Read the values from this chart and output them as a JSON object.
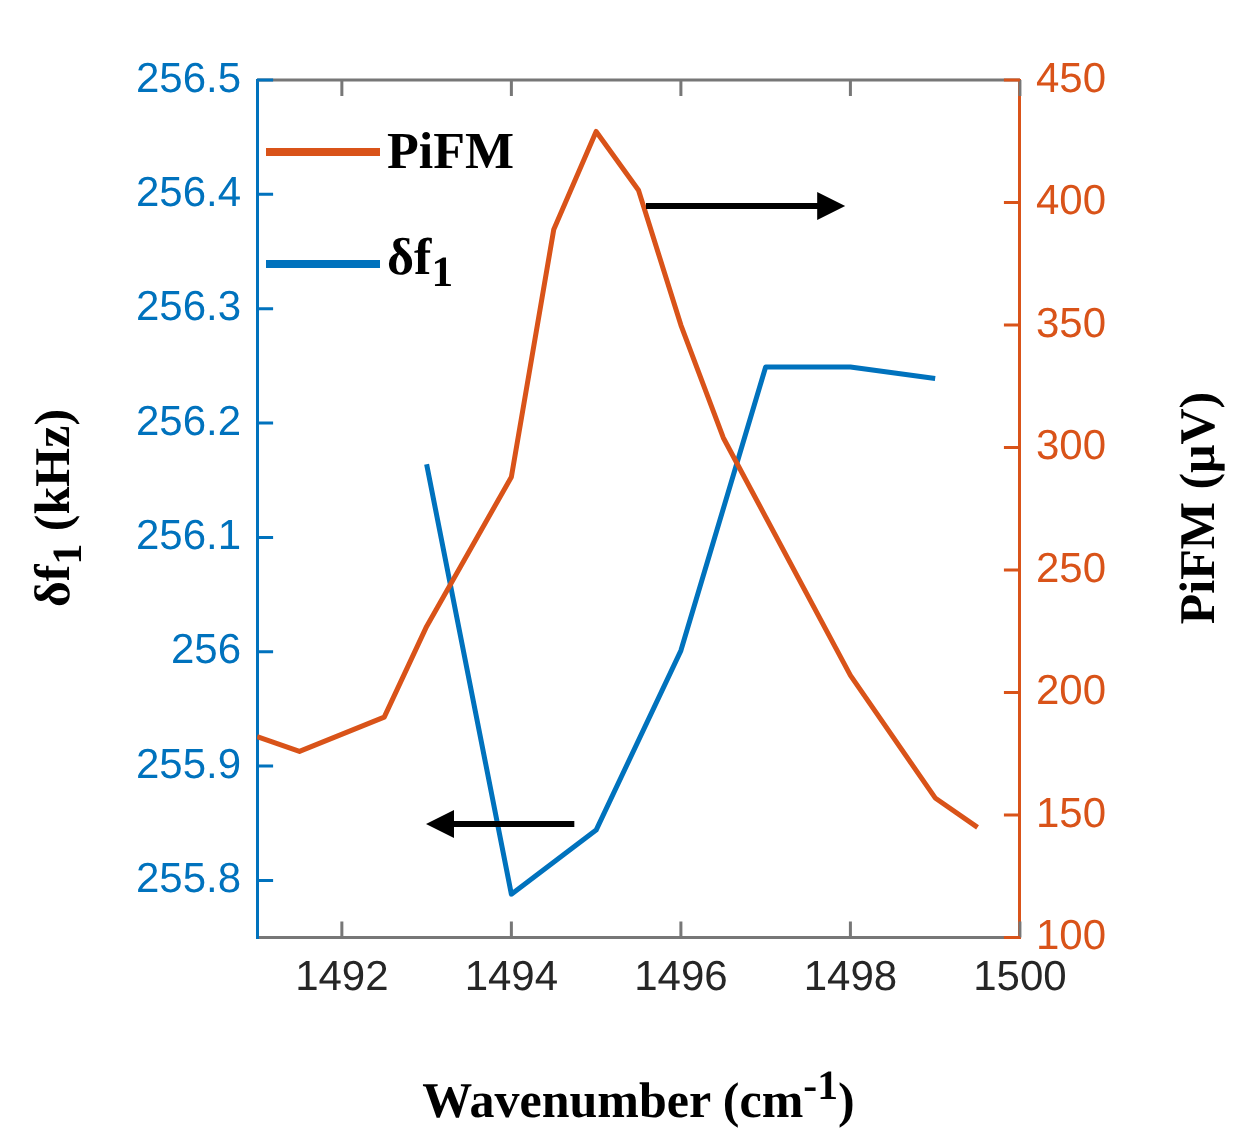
{
  "chart_data": {
    "type": "line",
    "xlabel": "Wavenumber (cm$^{-1}$)",
    "ylabel": "δf$_{1}$ (kHz)",
    "y2label": "PiFM (μV)",
    "xlim": [
      1491,
      1500
    ],
    "xticks": [
      1492,
      1494,
      1496,
      1498,
      1500
    ],
    "ylim": [
      255.75,
      256.5
    ],
    "yticks": [
      255.8,
      255.9,
      256,
      256.1,
      256.2,
      256.3,
      256.4,
      256.5
    ],
    "y2lim": [
      100,
      450
    ],
    "y2ticks": [
      100,
      150,
      200,
      250,
      300,
      350,
      400,
      450
    ],
    "grid": false,
    "legend": "top left",
    "marker": "none",
    "line_style": "solid",
    "series": [
      {
        "name": "PiFM",
        "color": "#d95319",
        "axis": "y2",
        "x": [
          1491,
          1491.5,
          1492.5,
          1493,
          1494,
          1494.5,
          1495,
          1495.5,
          1496,
          1496.5,
          1498,
          1499,
          1499.5
        ],
        "values": [
          182,
          176,
          190,
          227,
          288,
          389,
          429,
          405,
          350,
          304,
          207,
          157,
          145
        ]
      },
      {
        "name": "δf$_{1}$",
        "color": "#0072bd",
        "axis": "y",
        "x": [
          1493,
          1494,
          1495,
          1496,
          1497,
          1498,
          1499
        ],
        "values": [
          256.164,
          255.788,
          255.844,
          256.001,
          256.249,
          256.249,
          256.239
        ]
      }
    ]
  }
}
